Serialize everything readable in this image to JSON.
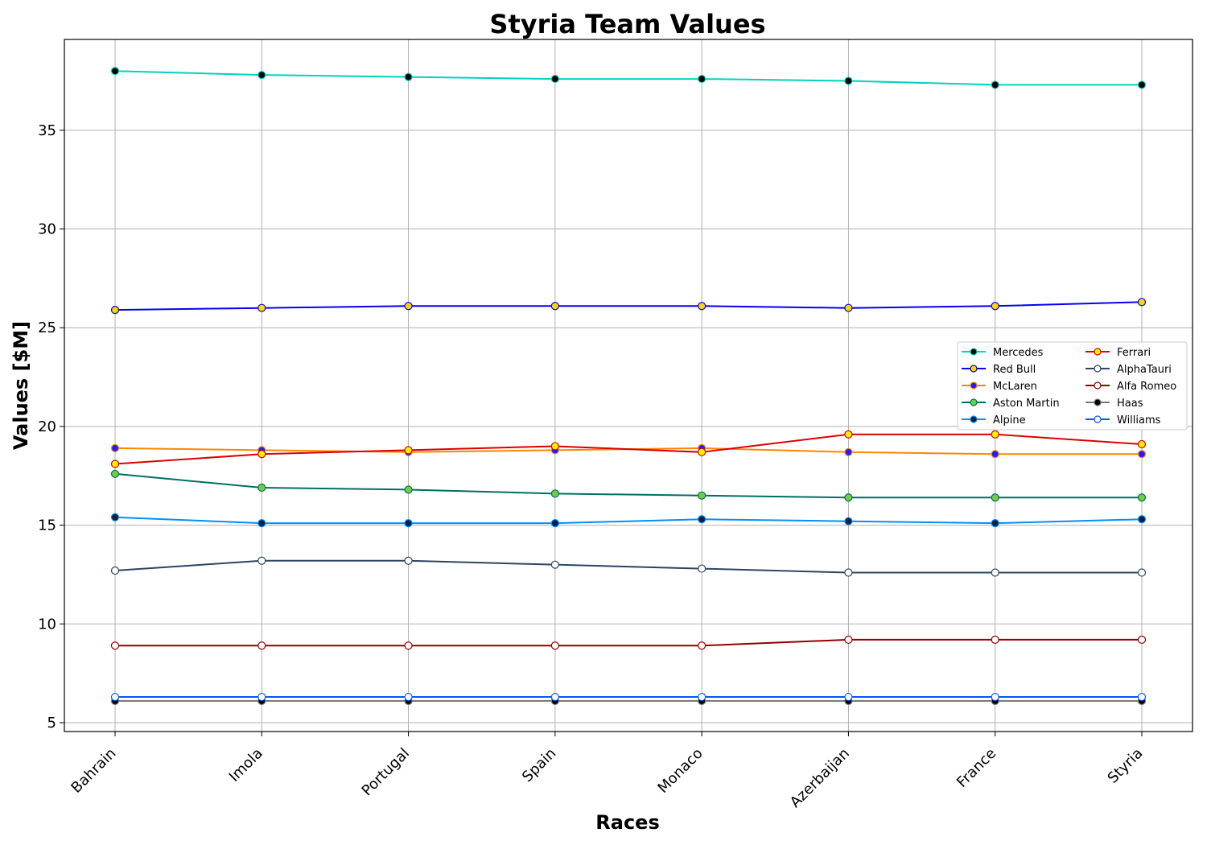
{
  "chart_data": {
    "type": "line",
    "title": "Styria Team Values",
    "xlabel": "Races",
    "ylabel": "Values [$M]",
    "categories": [
      "Bahrain",
      "Imola",
      "Portugal",
      "Spain",
      "Monaco",
      "Azerbaijan",
      "France",
      "Styria"
    ],
    "ylim": [
      4.55,
      39.6
    ],
    "yticks": [
      5,
      10,
      15,
      20,
      25,
      30,
      35
    ],
    "grid": true,
    "legend_position": "center-right",
    "legend_columns": 2,
    "series": [
      {
        "name": "Mercedes",
        "color": "#00d2be",
        "marker_fill": "#000000",
        "marker_edge": "#00d2be",
        "values": [
          38.0,
          37.8,
          37.7,
          37.6,
          37.6,
          37.5,
          37.3,
          37.3
        ]
      },
      {
        "name": "Red Bull",
        "color": "#0600ef",
        "marker_fill": "#fcd700",
        "marker_edge": "#0600ef",
        "values": [
          25.9,
          26.0,
          26.1,
          26.1,
          26.1,
          26.0,
          26.1,
          26.3
        ]
      },
      {
        "name": "McLaren",
        "color": "#ff8700",
        "marker_fill": "#1e1eff",
        "marker_edge": "#ff8700",
        "values": [
          18.9,
          18.8,
          18.7,
          18.8,
          18.9,
          18.7,
          18.6,
          18.6
        ]
      },
      {
        "name": "Aston Martin",
        "color": "#006f62",
        "marker_fill": "#6fcf3f",
        "marker_edge": "#006f62",
        "values": [
          17.6,
          16.9,
          16.8,
          16.6,
          16.5,
          16.4,
          16.4,
          16.4
        ]
      },
      {
        "name": "Alpine",
        "color": "#0090ff",
        "marker_fill": "#0b1e4a",
        "marker_edge": "#0090ff",
        "values": [
          15.4,
          15.1,
          15.1,
          15.1,
          15.3,
          15.2,
          15.1,
          15.3
        ]
      },
      {
        "name": "Ferrari",
        "color": "#dc0000",
        "marker_fill": "#fff200",
        "marker_edge": "#dc0000",
        "values": [
          18.1,
          18.6,
          18.8,
          19.0,
          18.7,
          19.6,
          19.6,
          19.1
        ]
      },
      {
        "name": "AlphaTauri",
        "color": "#2b4562",
        "marker_fill": "#ffffff",
        "marker_edge": "#2b4562",
        "values": [
          12.7,
          13.2,
          13.2,
          13.0,
          12.8,
          12.6,
          12.6,
          12.6
        ]
      },
      {
        "name": "Alfa Romeo",
        "color": "#900000",
        "marker_fill": "#ffffff",
        "marker_edge": "#900000",
        "values": [
          8.9,
          8.9,
          8.9,
          8.9,
          8.9,
          9.2,
          9.2,
          9.2
        ]
      },
      {
        "name": "Haas",
        "color": "#787878",
        "marker_fill": "#000000",
        "marker_edge": "#787878",
        "values": [
          6.1,
          6.1,
          6.1,
          6.1,
          6.1,
          6.1,
          6.1,
          6.1
        ]
      },
      {
        "name": "Williams",
        "color": "#005aff",
        "marker_fill": "#ffffff",
        "marker_edge": "#005aff",
        "values": [
          6.3,
          6.3,
          6.3,
          6.3,
          6.3,
          6.3,
          6.3,
          6.3
        ]
      }
    ]
  }
}
